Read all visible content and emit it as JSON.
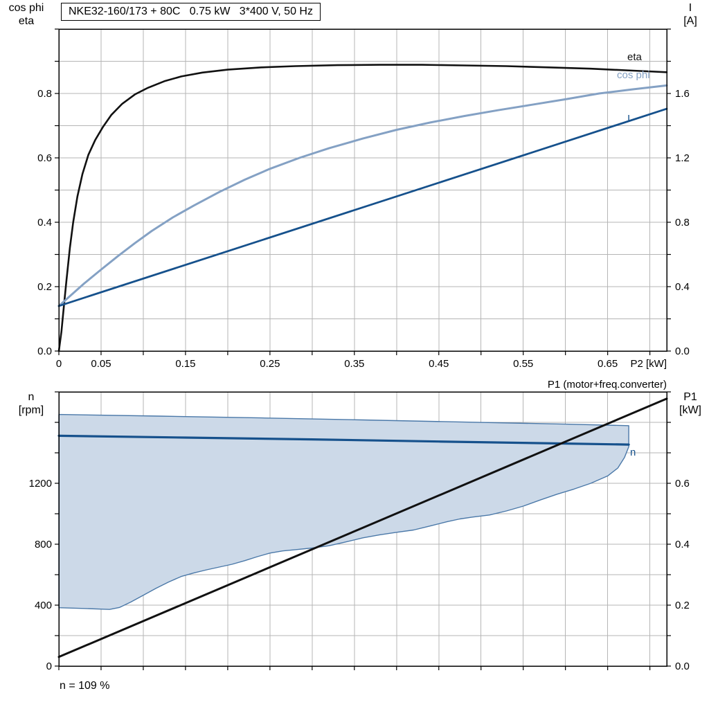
{
  "chart_data": [
    {
      "type": "line",
      "title": "NKE32-160/173 + 80C   0.75 kW   3*400 V, 50 Hz",
      "xlabel": "P2 [kW]",
      "yleft": [
        "cos phi",
        "eta"
      ],
      "yright": [
        "I",
        "[A]"
      ],
      "xlim": [
        0,
        0.72
      ],
      "ylim_left": [
        0,
        1.0
      ],
      "ylim_right": [
        0,
        2.0
      ],
      "x_gridstep": 0.05,
      "y_gridstep_left": 0.1,
      "xticks": [
        [
          0,
          "0"
        ],
        [
          0.05,
          "0.05"
        ],
        [
          0.15,
          "0.15"
        ],
        [
          0.25,
          "0.25"
        ],
        [
          0.35,
          "0.35"
        ],
        [
          0.45,
          "0.45"
        ],
        [
          0.55,
          "0.55"
        ],
        [
          0.65,
          "0.65"
        ]
      ],
      "yticks_left": [
        [
          0,
          "0.0"
        ],
        [
          0.2,
          "0.2"
        ],
        [
          0.4,
          "0.4"
        ],
        [
          0.6,
          "0.6"
        ],
        [
          0.8,
          "0.8"
        ]
      ],
      "yticks_right": [
        [
          0,
          "0.0"
        ],
        [
          0.4,
          "0.4"
        ],
        [
          0.8,
          "0.8"
        ],
        [
          1.2,
          "1.2"
        ],
        [
          1.6,
          "1.6"
        ]
      ],
      "series": [
        {
          "name": "eta",
          "axis": "left",
          "color": "#111111",
          "width": 2.6,
          "points": [
            [
              0,
              0
            ],
            [
              0.003,
              0.06
            ],
            [
              0.006,
              0.14
            ],
            [
              0.009,
              0.22
            ],
            [
              0.013,
              0.32
            ],
            [
              0.017,
              0.4
            ],
            [
              0.022,
              0.48
            ],
            [
              0.028,
              0.55
            ],
            [
              0.035,
              0.61
            ],
            [
              0.043,
              0.655
            ],
            [
              0.052,
              0.695
            ],
            [
              0.062,
              0.733
            ],
            [
              0.075,
              0.768
            ],
            [
              0.09,
              0.797
            ],
            [
              0.105,
              0.817
            ],
            [
              0.125,
              0.838
            ],
            [
              0.145,
              0.853
            ],
            [
              0.17,
              0.865
            ],
            [
              0.2,
              0.874
            ],
            [
              0.24,
              0.881
            ],
            [
              0.28,
              0.885
            ],
            [
              0.33,
              0.888
            ],
            [
              0.38,
              0.889
            ],
            [
              0.43,
              0.889
            ],
            [
              0.48,
              0.887
            ],
            [
              0.53,
              0.885
            ],
            [
              0.58,
              0.881
            ],
            [
              0.63,
              0.877
            ],
            [
              0.68,
              0.871
            ],
            [
              0.72,
              0.866
            ]
          ]
        },
        {
          "name": "cos phi",
          "axis": "left",
          "color": "#84a1c4",
          "width": 3,
          "points": [
            [
              0,
              0.14
            ],
            [
              0.015,
              0.175
            ],
            [
              0.03,
              0.21
            ],
            [
              0.05,
              0.253
            ],
            [
              0.07,
              0.295
            ],
            [
              0.09,
              0.335
            ],
            [
              0.11,
              0.373
            ],
            [
              0.135,
              0.415
            ],
            [
              0.16,
              0.452
            ],
            [
              0.19,
              0.494
            ],
            [
              0.22,
              0.532
            ],
            [
              0.25,
              0.566
            ],
            [
              0.285,
              0.6
            ],
            [
              0.32,
              0.63
            ],
            [
              0.36,
              0.66
            ],
            [
              0.4,
              0.687
            ],
            [
              0.44,
              0.71
            ],
            [
              0.48,
              0.73
            ],
            [
              0.52,
              0.748
            ],
            [
              0.56,
              0.765
            ],
            [
              0.6,
              0.782
            ],
            [
              0.64,
              0.8
            ],
            [
              0.68,
              0.813
            ],
            [
              0.72,
              0.825
            ]
          ]
        },
        {
          "name": "I",
          "axis": "right",
          "color": "#16518c",
          "width": 2.8,
          "points": [
            [
              0,
              0.28
            ],
            [
              0.72,
              1.505
            ]
          ]
        }
      ]
    },
    {
      "type": "line+area",
      "yleft": [
        "n",
        "[rpm]"
      ],
      "yright": [
        "P1",
        "[kW]"
      ],
      "right_title": "P1 (motor+freq.converter)",
      "note": "n = 109 %",
      "xlim": [
        0,
        0.72
      ],
      "ylim_left": [
        0,
        1800
      ],
      "ylim_right": [
        0,
        0.9
      ],
      "x_gridstep": 0.05,
      "y_gridstep_left": 200,
      "yticks_left": [
        [
          0,
          "0"
        ],
        [
          400,
          "400"
        ],
        [
          800,
          "800"
        ],
        [
          1200,
          "1200"
        ]
      ],
      "yticks_right": [
        [
          0,
          "0.0"
        ],
        [
          0.2,
          "0.2"
        ],
        [
          0.4,
          "0.4"
        ],
        [
          0.6,
          "0.6"
        ]
      ],
      "area": {
        "name": "speed-range-envelope",
        "fill": "#ccd9e8",
        "stroke": "#4a78a8",
        "top": [
          [
            0,
            1652
          ],
          [
            0.12,
            1641
          ],
          [
            0.24,
            1629
          ],
          [
            0.36,
            1616
          ],
          [
            0.48,
            1602
          ],
          [
            0.6,
            1588
          ],
          [
            0.675,
            1578
          ]
        ],
        "bottom": [
          [
            0,
            383
          ],
          [
            0.03,
            378
          ],
          [
            0.06,
            372
          ],
          [
            0.072,
            385
          ],
          [
            0.085,
            420
          ],
          [
            0.1,
            465
          ],
          [
            0.115,
            510
          ],
          [
            0.13,
            552
          ],
          [
            0.145,
            588
          ],
          [
            0.16,
            612
          ],
          [
            0.175,
            632
          ],
          [
            0.19,
            650
          ],
          [
            0.205,
            668
          ],
          [
            0.22,
            692
          ],
          [
            0.235,
            718
          ],
          [
            0.25,
            742
          ],
          [
            0.265,
            756
          ],
          [
            0.28,
            764
          ],
          [
            0.3,
            775
          ],
          [
            0.32,
            790
          ],
          [
            0.34,
            815
          ],
          [
            0.36,
            842
          ],
          [
            0.38,
            862
          ],
          [
            0.4,
            878
          ],
          [
            0.42,
            893
          ],
          [
            0.44,
            920
          ],
          [
            0.46,
            948
          ],
          [
            0.475,
            966
          ],
          [
            0.49,
            978
          ],
          [
            0.51,
            992
          ],
          [
            0.53,
            1018
          ],
          [
            0.55,
            1050
          ],
          [
            0.57,
            1090
          ],
          [
            0.59,
            1128
          ],
          [
            0.61,
            1162
          ],
          [
            0.63,
            1200
          ],
          [
            0.65,
            1248
          ],
          [
            0.662,
            1300
          ],
          [
            0.67,
            1370
          ],
          [
            0.675,
            1440
          ]
        ]
      },
      "series": [
        {
          "name": "n",
          "axis": "left",
          "color": "#16518c",
          "width": 3.2,
          "points": [
            [
              0,
              1512
            ],
            [
              0.15,
              1500
            ],
            [
              0.3,
              1488
            ],
            [
              0.45,
              1474
            ],
            [
              0.6,
              1461
            ],
            [
              0.675,
              1454
            ]
          ]
        },
        {
          "name": "P1",
          "axis": "right",
          "color": "#111111",
          "width": 3,
          "points": [
            [
              0,
              0.03
            ],
            [
              0.72,
              0.878
            ]
          ]
        }
      ]
    }
  ]
}
